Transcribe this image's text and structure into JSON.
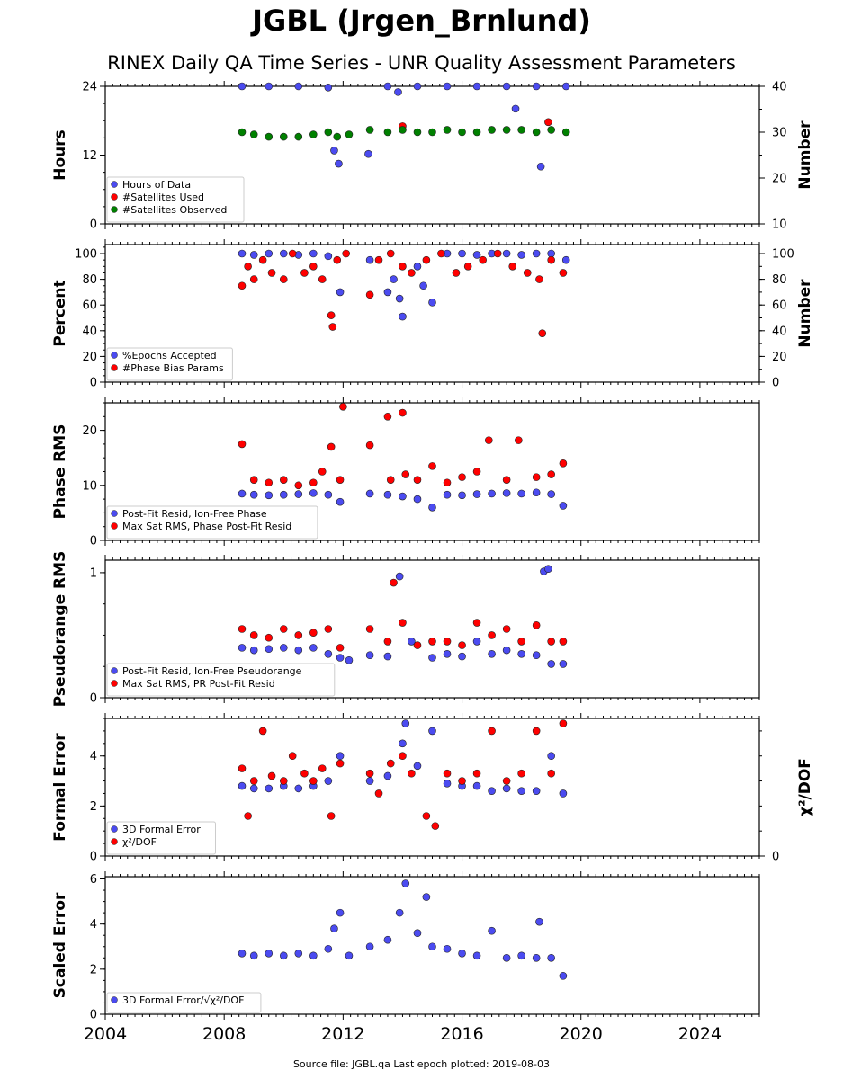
{
  "title": "JGBL (Jrgen_Brnlund)",
  "subtitle": "RINEX Daily QA Time Series - UNR Quality Assessment Parameters",
  "source_text": "Source file: JGBL.qa Last epoch plotted: 2019-08-03",
  "colors": {
    "blue": "#4b4bf0",
    "red": "#ff0000",
    "green": "#008000"
  },
  "chart_data": [
    {
      "type": "scatter",
      "ylabel": "Hours",
      "ylabel_right": "Number",
      "ylim": [
        0,
        24
      ],
      "yticks": [
        "0",
        "12",
        "24"
      ],
      "ylim_right": [
        10,
        40
      ],
      "yticks_right": [
        "10",
        "20",
        "30",
        "40"
      ],
      "xlim": [
        2004,
        2026
      ],
      "grid": false,
      "legend_placement": "lower-left",
      "legend": [
        "Hours of Data",
        "#Satellites Used",
        "#Satellites Observed"
      ],
      "series": [
        {
          "name": "Hours of Data",
          "axis": "left",
          "color": "blue",
          "x": [
            2008.6,
            2009.5,
            2010.5,
            2011.5,
            2011.7,
            2011.85,
            2012.85,
            2013.5,
            2013.85,
            2014.5,
            2015.5,
            2016.5,
            2017.5,
            2017.8,
            2018.5,
            2018.65,
            2019.5
          ],
          "y": [
            24,
            24,
            24,
            23.8,
            12.8,
            10.5,
            12.2,
            24,
            23,
            24,
            24,
            24,
            24,
            20.1,
            24,
            10,
            24
          ]
        },
        {
          "name": "#Satellites Used",
          "axis": "right",
          "color": "red",
          "x": [
            2014.0,
            2018.9
          ],
          "y": [
            31.3,
            32.2
          ]
        },
        {
          "name": "#Satellites Observed",
          "axis": "right",
          "color": "green",
          "x": [
            2008.6,
            2009.0,
            2009.5,
            2010.0,
            2010.5,
            2011.0,
            2011.5,
            2011.8,
            2012.2,
            2012.9,
            2013.5,
            2014.0,
            2014.5,
            2015.0,
            2015.5,
            2016.0,
            2016.5,
            2017.0,
            2017.5,
            2018.0,
            2018.5,
            2019.0,
            2019.5
          ],
          "y": [
            30,
            29.5,
            29,
            29,
            29,
            29.5,
            30,
            29,
            29.5,
            30.5,
            30,
            30.5,
            30,
            30,
            30.5,
            30,
            30,
            30.5,
            30.5,
            30.5,
            30,
            30.5,
            30
          ]
        }
      ]
    },
    {
      "type": "scatter",
      "ylabel": "Percent",
      "ylabel_right": "Number",
      "ylim": [
        0,
        107
      ],
      "yticks": [
        "0",
        "20",
        "40",
        "60",
        "80",
        "100"
      ],
      "yticks_right": [
        "0",
        "20",
        "40",
        "60",
        "80",
        "100"
      ],
      "xlim": [
        2004,
        2026
      ],
      "grid": false,
      "legend_placement": "lower-left",
      "legend": [
        "%Epochs Accepted",
        "#Phase Bias Params"
      ],
      "series": [
        {
          "name": "%Epochs Accepted",
          "color": "blue",
          "x": [
            2008.6,
            2009.0,
            2009.5,
            2010.0,
            2010.5,
            2011.0,
            2011.5,
            2011.9,
            2012.9,
            2013.5,
            2013.7,
            2013.9,
            2014.0,
            2014.5,
            2014.7,
            2015.0,
            2015.5,
            2016.0,
            2016.5,
            2017.0,
            2017.5,
            2018.0,
            2018.5,
            2019.0,
            2019.5
          ],
          "y": [
            100,
            99,
            100,
            100,
            99,
            100,
            98,
            70,
            95,
            70,
            80,
            65,
            51,
            90,
            75,
            62,
            100,
            100,
            99,
            100,
            100,
            99,
            100,
            100,
            95
          ]
        },
        {
          "name": "#Phase Bias Params",
          "color": "red",
          "x": [
            2008.6,
            2008.8,
            2009.0,
            2009.3,
            2009.6,
            2010.0,
            2010.3,
            2010.7,
            2011.0,
            2011.3,
            2011.6,
            2011.65,
            2011.8,
            2012.1,
            2012.9,
            2013.2,
            2013.6,
            2014.0,
            2014.3,
            2014.8,
            2015.3,
            2015.8,
            2016.2,
            2016.7,
            2017.2,
            2017.7,
            2018.2,
            2018.6,
            2018.7,
            2019.0,
            2019.4
          ],
          "y": [
            75,
            90,
            80,
            95,
            85,
            80,
            100,
            85,
            90,
            80,
            52,
            43,
            95,
            100,
            68,
            95,
            100,
            90,
            85,
            95,
            100,
            85,
            90,
            95,
            100,
            90,
            85,
            80,
            38,
            95,
            85
          ]
        }
      ]
    },
    {
      "type": "scatter",
      "ylabel": "Phase RMS",
      "ylim": [
        0,
        25
      ],
      "yticks": [
        "0",
        "10",
        "20"
      ],
      "xlim": [
        2004,
        2026
      ],
      "grid": false,
      "legend_placement": "lower-left",
      "legend": [
        "Post-Fit Resid, Ion-Free Phase",
        "Max Sat RMS, Phase Post-Fit Resid"
      ],
      "series": [
        {
          "name": "Post-Fit Resid, Ion-Free Phase",
          "color": "blue",
          "x": [
            2008.6,
            2009.0,
            2009.5,
            2010.0,
            2010.5,
            2011.0,
            2011.5,
            2011.9,
            2012.9,
            2013.5,
            2014.0,
            2014.5,
            2015.0,
            2015.5,
            2016.0,
            2016.5,
            2017.0,
            2017.5,
            2018.0,
            2018.5,
            2019.0,
            2019.4
          ],
          "y": [
            8.5,
            8.3,
            8.2,
            8.3,
            8.4,
            8.6,
            8.3,
            7.0,
            8.5,
            8.3,
            8.0,
            7.5,
            6.0,
            8.3,
            8.2,
            8.4,
            8.5,
            8.6,
            8.5,
            8.7,
            8.4,
            6.3
          ]
        },
        {
          "name": "Max Sat RMS, Phase Post-Fit Resid",
          "color": "red",
          "x": [
            2008.6,
            2009.0,
            2009.5,
            2010.0,
            2010.5,
            2011.0,
            2011.3,
            2011.6,
            2011.9,
            2012.0,
            2012.9,
            2013.5,
            2013.6,
            2014.0,
            2014.1,
            2014.5,
            2015.0,
            2015.5,
            2016.0,
            2016.5,
            2016.9,
            2017.5,
            2017.9,
            2018.5,
            2019.0,
            2019.4
          ],
          "y": [
            17.5,
            11,
            10.5,
            11,
            10,
            10.5,
            12.5,
            17,
            11,
            24.3,
            17.3,
            22.5,
            11,
            23.2,
            12,
            11,
            13.5,
            10.5,
            11.5,
            12.5,
            18.2,
            11,
            18.2,
            11.5,
            12,
            14
          ]
        }
      ]
    },
    {
      "type": "scatter",
      "ylabel": "Pseudorange RMS",
      "ylim": [
        0,
        1.1
      ],
      "yticks": [
        "0",
        "1"
      ],
      "xlim": [
        2004,
        2026
      ],
      "grid": false,
      "legend_placement": "lower-left",
      "legend": [
        "Post-Fit Resid, Ion-Free Pseudorange",
        "Max Sat RMS, PR Post-Fit Resid"
      ],
      "series": [
        {
          "name": "Post-Fit Resid, Ion-Free Pseudorange",
          "color": "blue",
          "x": [
            2008.6,
            2009.0,
            2009.5,
            2010.0,
            2010.5,
            2011.0,
            2011.5,
            2011.9,
            2012.2,
            2012.9,
            2013.5,
            2013.9,
            2014.3,
            2015.0,
            2015.5,
            2016.0,
            2016.5,
            2017.0,
            2017.5,
            2018.0,
            2018.5,
            2018.75,
            2018.9,
            2019.0,
            2019.4
          ],
          "y": [
            0.4,
            0.38,
            0.39,
            0.4,
            0.38,
            0.4,
            0.35,
            0.32,
            0.3,
            0.34,
            0.33,
            0.97,
            0.45,
            0.32,
            0.35,
            0.33,
            0.45,
            0.35,
            0.38,
            0.35,
            0.34,
            1.01,
            1.03,
            0.27,
            0.27
          ]
        },
        {
          "name": "Max Sat RMS, PR Post-Fit Resid",
          "color": "red",
          "x": [
            2008.6,
            2009.0,
            2009.5,
            2010.0,
            2010.5,
            2011.0,
            2011.5,
            2011.9,
            2012.9,
            2013.5,
            2013.7,
            2014.0,
            2014.5,
            2015.0,
            2015.5,
            2016.0,
            2016.5,
            2017.0,
            2017.5,
            2018.0,
            2018.5,
            2019.0,
            2019.4
          ],
          "y": [
            0.55,
            0.5,
            0.48,
            0.55,
            0.5,
            0.52,
            0.55,
            0.4,
            0.55,
            0.45,
            0.92,
            0.6,
            0.42,
            0.45,
            0.45,
            0.42,
            0.6,
            0.5,
            0.55,
            0.45,
            0.58,
            0.45,
            0.45
          ]
        }
      ]
    },
    {
      "type": "scatter",
      "ylabel": "Formal Error",
      "ylabel_right": "χ²/DOF",
      "ylim": [
        0,
        5.5
      ],
      "yticks": [
        "0",
        "2",
        "4"
      ],
      "yticks_right": [
        "0"
      ],
      "xlim": [
        2004,
        2026
      ],
      "grid": false,
      "legend_placement": "lower-left",
      "legend": [
        "3D Formal Error",
        "χ²/DOF"
      ],
      "series": [
        {
          "name": "3D Formal Error",
          "color": "blue",
          "x": [
            2008.6,
            2009.0,
            2009.5,
            2010.0,
            2010.5,
            2011.0,
            2011.5,
            2011.9,
            2012.9,
            2013.5,
            2014.0,
            2014.1,
            2014.5,
            2015.0,
            2015.5,
            2016.0,
            2016.5,
            2017.0,
            2017.5,
            2018.0,
            2018.5,
            2019.0,
            2019.4
          ],
          "y": [
            2.8,
            2.7,
            2.7,
            2.8,
            2.7,
            2.8,
            3.0,
            4.0,
            3.0,
            3.2,
            4.5,
            5.3,
            3.6,
            5.0,
            2.9,
            2.8,
            2.8,
            2.6,
            2.7,
            2.6,
            2.6,
            4.0,
            2.5
          ]
        },
        {
          "name": "χ²/DOF",
          "color": "red",
          "x": [
            2008.6,
            2008.8,
            2009.0,
            2009.3,
            2009.6,
            2010.0,
            2010.3,
            2010.7,
            2011.0,
            2011.3,
            2011.6,
            2011.9,
            2012.9,
            2013.2,
            2013.6,
            2014.0,
            2014.3,
            2014.8,
            2015.1,
            2015.5,
            2016.0,
            2016.5,
            2017.0,
            2017.5,
            2018.0,
            2018.5,
            2019.0,
            2019.4
          ],
          "y": [
            3.5,
            1.6,
            3.0,
            5.0,
            3.2,
            3.0,
            4.0,
            3.3,
            3.0,
            3.5,
            1.6,
            3.7,
            3.3,
            2.5,
            3.7,
            4.0,
            3.3,
            1.6,
            1.2,
            3.3,
            3.0,
            3.3,
            5.0,
            3.0,
            3.3,
            5.0,
            3.3,
            5.3
          ]
        }
      ]
    },
    {
      "type": "scatter",
      "ylabel": "Scaled Error",
      "ylim": [
        0,
        6.1
      ],
      "yticks": [
        "0",
        "2",
        "4",
        "6"
      ],
      "xlim": [
        2004,
        2026
      ],
      "xticks": [
        "2004",
        "2008",
        "2012",
        "2016",
        "2020",
        "2024"
      ],
      "grid": false,
      "legend_placement": "lower-left",
      "legend": [
        "3D Formal Error/√χ²/DOF"
      ],
      "series": [
        {
          "name": "3D Formal Error/√χ²/DOF",
          "color": "blue",
          "x": [
            2008.6,
            2009.0,
            2009.5,
            2010.0,
            2010.5,
            2011.0,
            2011.5,
            2011.7,
            2011.9,
            2012.2,
            2012.9,
            2013.5,
            2013.9,
            2014.1,
            2014.5,
            2014.8,
            2015.0,
            2015.5,
            2016.0,
            2016.5,
            2017.0,
            2017.5,
            2018.0,
            2018.5,
            2018.6,
            2019.0,
            2019.4
          ],
          "y": [
            2.7,
            2.6,
            2.7,
            2.6,
            2.7,
            2.6,
            2.9,
            3.8,
            4.5,
            2.6,
            3.0,
            3.3,
            4.5,
            5.8,
            3.6,
            5.2,
            3.0,
            2.9,
            2.7,
            2.6,
            3.7,
            2.5,
            2.6,
            2.5,
            4.1,
            2.5,
            1.7
          ]
        }
      ]
    }
  ]
}
